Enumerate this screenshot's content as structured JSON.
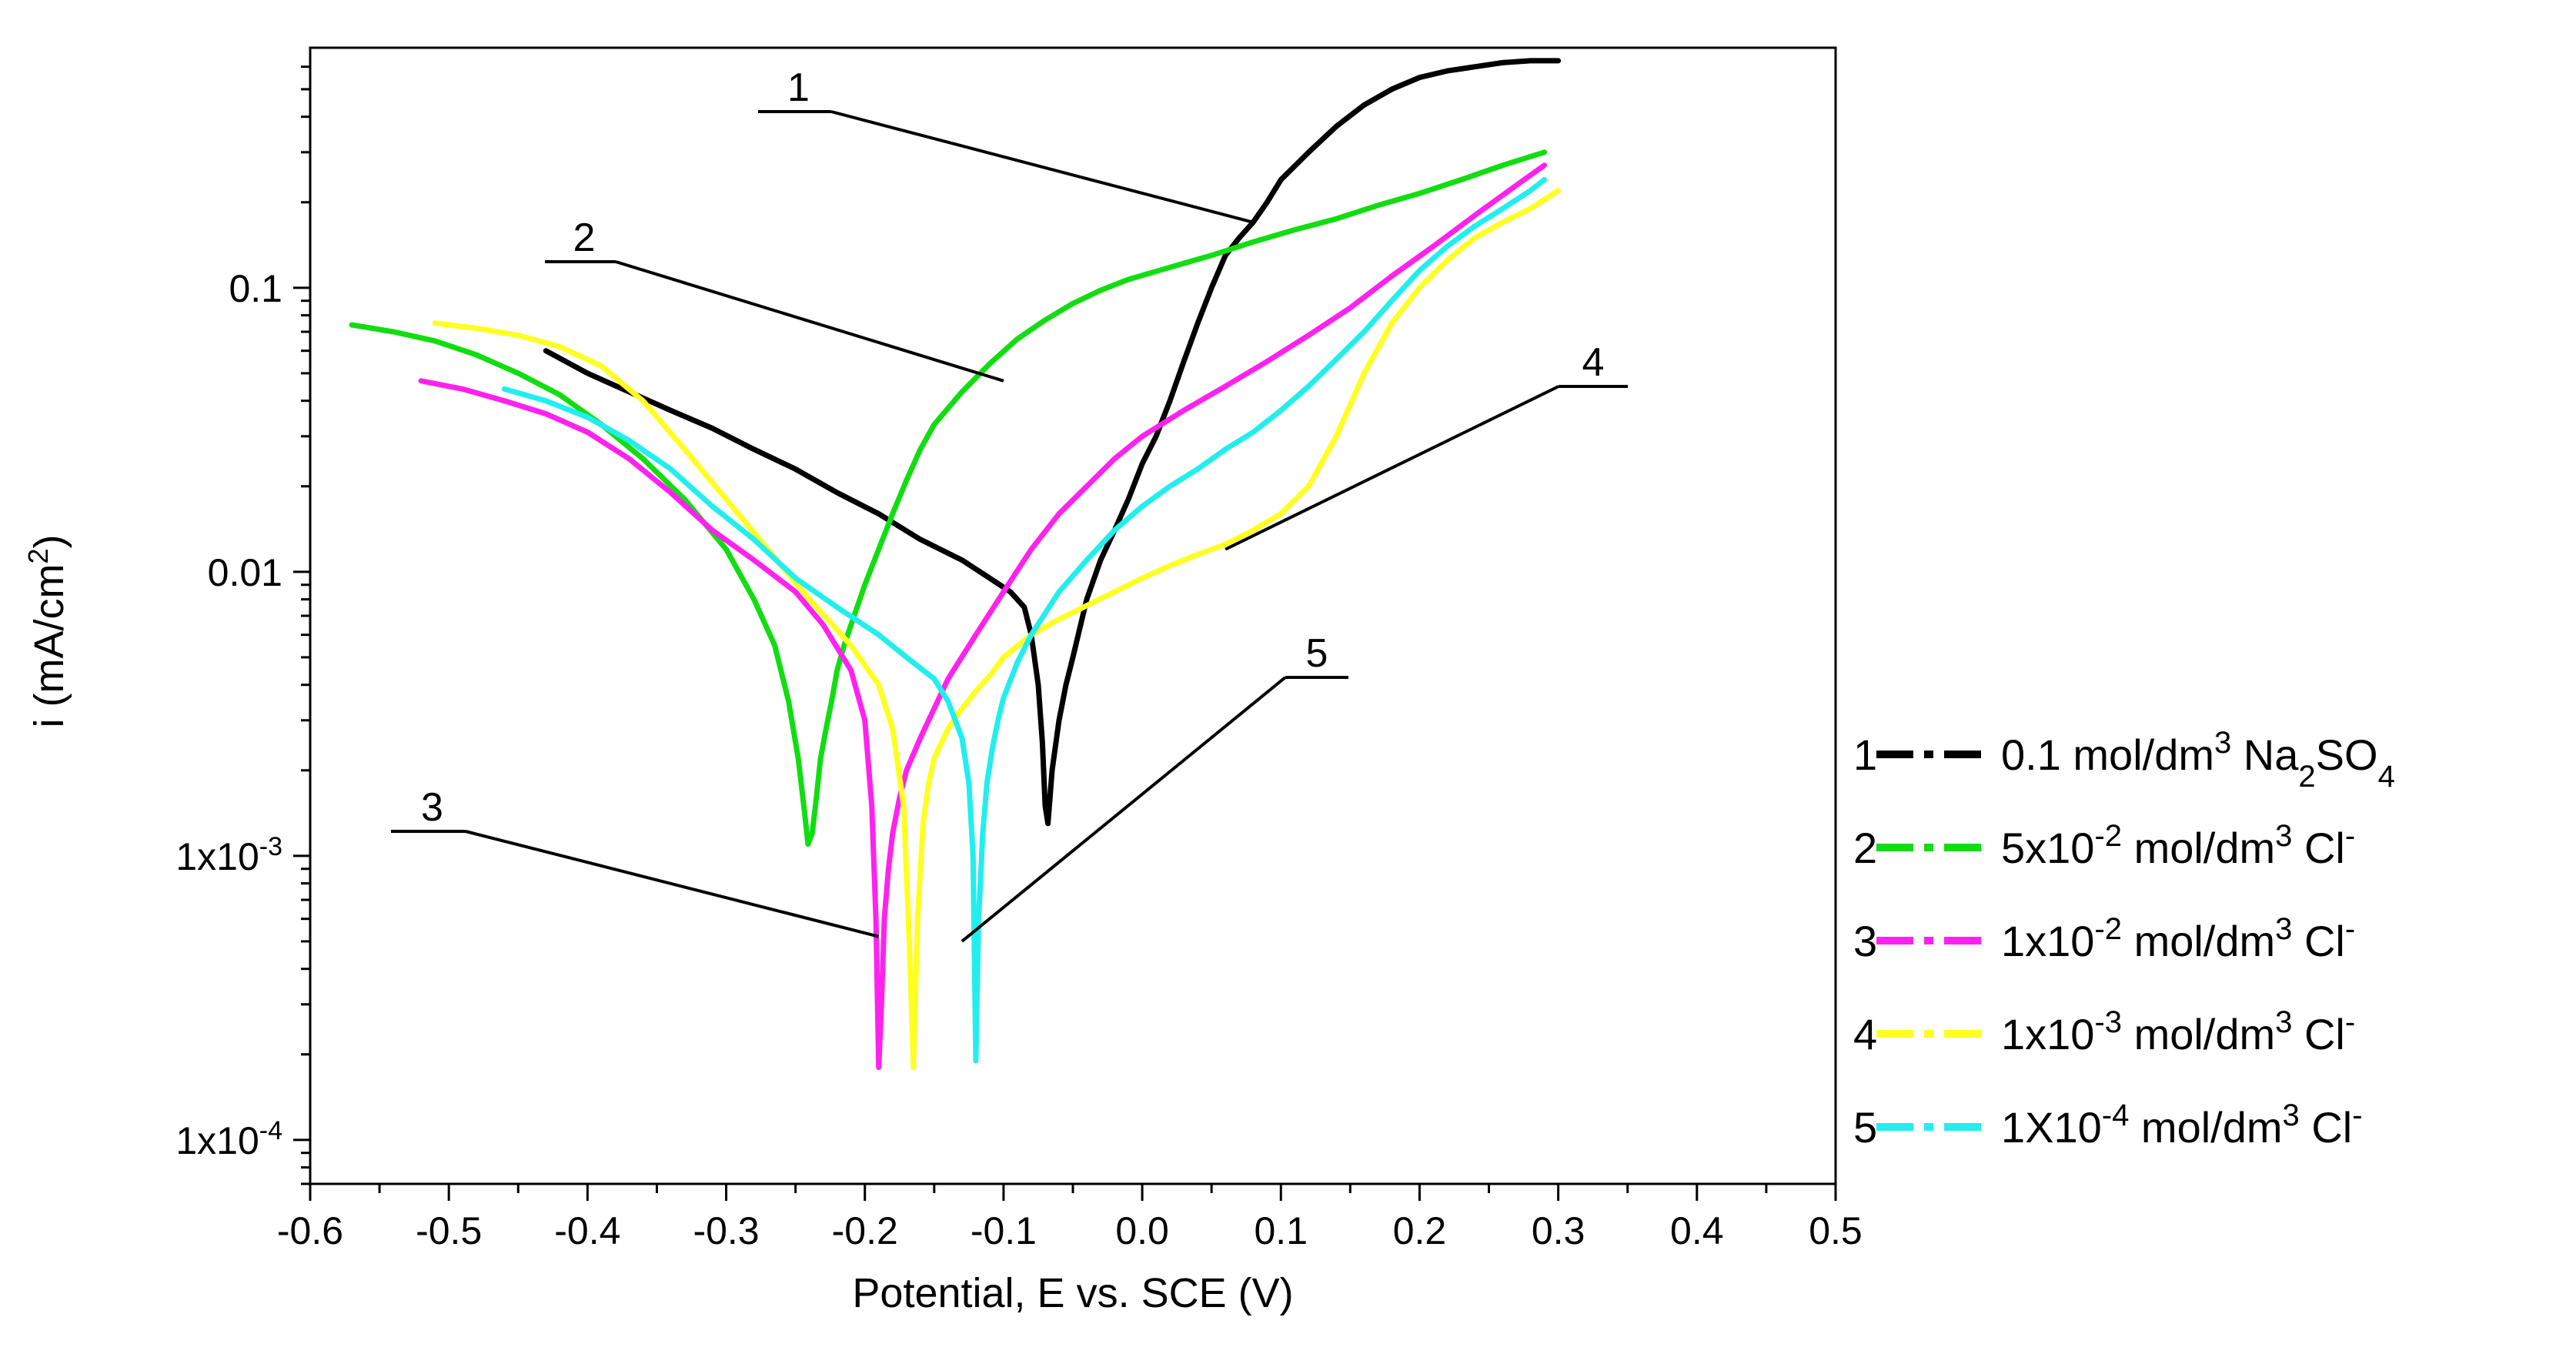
{
  "chart_data": {
    "type": "line",
    "title": "",
    "xlabel": "Potential, E vs. SCE (V)",
    "ylabel": "i (mA/cm2)",
    "ylabel_main": "i (mA/cm",
    "ylabel_sup": "2",
    "ylabel_end": ")",
    "xlim": [
      -0.6,
      0.5
    ],
    "ylim": [
      7e-05,
      0.7
    ],
    "yscale": "log",
    "grid": false,
    "legend_position": "right",
    "x_ticks": [
      -0.6,
      -0.5,
      -0.4,
      -0.3,
      -0.2,
      -0.1,
      0.0,
      0.1,
      0.2,
      0.3,
      0.4,
      0.5
    ],
    "x_tick_labels": [
      "-0.6",
      "-0.5",
      "-0.4",
      "-0.3",
      "-0.2",
      "-0.1",
      "0.0",
      "0.1",
      "0.2",
      "0.3",
      "0.4",
      "0.5"
    ],
    "y_ticks": [
      {
        "value": 0.1,
        "main": "0.1",
        "sup": ""
      },
      {
        "value": 0.01,
        "main": "0.01",
        "sup": ""
      },
      {
        "value": 0.001,
        "main": "1x10",
        "sup": "-3"
      },
      {
        "value": 0.0001,
        "main": "1x10",
        "sup": "-4"
      }
    ],
    "series": [
      {
        "id": "1",
        "color": "#000000",
        "legend": {
          "num": "1",
          "parts": [
            {
              "t": "0.1 mol/dm"
            },
            {
              "t": "3",
              "sup": true
            },
            {
              "t": " Na"
            },
            {
              "t": "2",
              "sub": true
            },
            {
              "t": "SO"
            },
            {
              "t": "4",
              "sub": true
            }
          ]
        },
        "x": [
          -0.43,
          -0.4,
          -0.37,
          -0.34,
          -0.31,
          -0.28,
          -0.25,
          -0.22,
          -0.19,
          -0.16,
          -0.13,
          -0.11,
          -0.095,
          -0.085,
          -0.08,
          -0.075,
          -0.072,
          -0.07,
          -0.068,
          -0.065,
          -0.06,
          -0.055,
          -0.05,
          -0.04,
          -0.03,
          -0.02,
          -0.01,
          0.0,
          0.01,
          0.02,
          0.03,
          0.04,
          0.05,
          0.06,
          0.07,
          0.08,
          0.09,
          0.1,
          0.12,
          0.14,
          0.16,
          0.18,
          0.2,
          0.22,
          0.24,
          0.26,
          0.28,
          0.3
        ],
        "y": [
          0.06,
          0.05,
          0.043,
          0.037,
          0.032,
          0.027,
          0.023,
          0.019,
          0.016,
          0.013,
          0.011,
          0.0095,
          0.0085,
          0.0075,
          0.006,
          0.004,
          0.0025,
          0.0015,
          0.0013,
          0.002,
          0.003,
          0.004,
          0.005,
          0.008,
          0.011,
          0.014,
          0.018,
          0.024,
          0.03,
          0.04,
          0.055,
          0.075,
          0.1,
          0.13,
          0.15,
          0.17,
          0.2,
          0.24,
          0.3,
          0.37,
          0.44,
          0.5,
          0.55,
          0.58,
          0.6,
          0.62,
          0.63,
          0.63
        ]
      },
      {
        "id": "2",
        "color": "#11dd11",
        "legend": {
          "num": "2",
          "parts": [
            {
              "t": "5x10"
            },
            {
              "t": "-2",
              "sup": true
            },
            {
              "t": " mol/dm"
            },
            {
              "t": "3",
              "sup": true
            },
            {
              "t": " Cl"
            },
            {
              "t": "-",
              "sup": true
            }
          ]
        },
        "x": [
          -0.57,
          -0.54,
          -0.51,
          -0.48,
          -0.45,
          -0.42,
          -0.39,
          -0.36,
          -0.33,
          -0.3,
          -0.28,
          -0.265,
          -0.255,
          -0.248,
          -0.244,
          -0.241,
          -0.238,
          -0.235,
          -0.232,
          -0.228,
          -0.224,
          -0.22,
          -0.215,
          -0.21,
          -0.2,
          -0.19,
          -0.18,
          -0.17,
          -0.16,
          -0.15,
          -0.13,
          -0.11,
          -0.09,
          -0.07,
          -0.05,
          -0.03,
          -0.01,
          0.02,
          0.05,
          0.08,
          0.11,
          0.14,
          0.17,
          0.2,
          0.23,
          0.26,
          0.29
        ],
        "y": [
          0.074,
          0.07,
          0.065,
          0.058,
          0.05,
          0.042,
          0.033,
          0.025,
          0.018,
          0.012,
          0.008,
          0.0055,
          0.0035,
          0.0022,
          0.0015,
          0.0011,
          0.0012,
          0.0016,
          0.0022,
          0.0028,
          0.0035,
          0.0045,
          0.0055,
          0.0065,
          0.009,
          0.012,
          0.016,
          0.021,
          0.027,
          0.033,
          0.043,
          0.054,
          0.066,
          0.077,
          0.088,
          0.098,
          0.107,
          0.118,
          0.13,
          0.145,
          0.16,
          0.175,
          0.195,
          0.215,
          0.24,
          0.27,
          0.3
        ]
      },
      {
        "id": "3",
        "color": "#ff22ee",
        "legend": {
          "num": "3",
          "parts": [
            {
              "t": "1x10"
            },
            {
              "t": "-2",
              "sup": true
            },
            {
              "t": " mol/dm"
            },
            {
              "t": "3",
              "sup": true
            },
            {
              "t": " Cl"
            },
            {
              "t": "-",
              "sup": true
            }
          ]
        },
        "x": [
          -0.52,
          -0.49,
          -0.46,
          -0.43,
          -0.4,
          -0.37,
          -0.34,
          -0.31,
          -0.28,
          -0.25,
          -0.23,
          -0.21,
          -0.2,
          -0.195,
          -0.192,
          -0.19,
          -0.188,
          -0.186,
          -0.183,
          -0.18,
          -0.175,
          -0.17,
          -0.16,
          -0.15,
          -0.14,
          -0.12,
          -0.1,
          -0.08,
          -0.06,
          -0.04,
          -0.02,
          0.0,
          0.03,
          0.06,
          0.09,
          0.12,
          0.15,
          0.18,
          0.21,
          0.24,
          0.27,
          0.29
        ],
        "y": [
          0.047,
          0.044,
          0.04,
          0.036,
          0.031,
          0.025,
          0.019,
          0.014,
          0.011,
          0.0085,
          0.0065,
          0.0045,
          0.003,
          0.0015,
          0.0006,
          0.00018,
          0.0003,
          0.0006,
          0.0009,
          0.0012,
          0.0016,
          0.002,
          0.0026,
          0.0033,
          0.0042,
          0.006,
          0.0085,
          0.012,
          0.016,
          0.02,
          0.025,
          0.03,
          0.037,
          0.045,
          0.055,
          0.068,
          0.085,
          0.11,
          0.14,
          0.18,
          0.23,
          0.27
        ]
      },
      {
        "id": "4",
        "color": "#ffff22",
        "legend": {
          "num": "4",
          "parts": [
            {
              "t": "1x10"
            },
            {
              "t": "-3",
              "sup": true
            },
            {
              "t": " mol/dm"
            },
            {
              "t": "3",
              "sup": true
            },
            {
              "t": " Cl"
            },
            {
              "t": "-",
              "sup": true
            }
          ]
        },
        "x": [
          -0.51,
          -0.48,
          -0.45,
          -0.42,
          -0.39,
          -0.36,
          -0.33,
          -0.3,
          -0.27,
          -0.24,
          -0.21,
          -0.19,
          -0.18,
          -0.172,
          -0.168,
          -0.165,
          -0.162,
          -0.158,
          -0.154,
          -0.15,
          -0.14,
          -0.13,
          -0.12,
          -0.11,
          -0.1,
          -0.08,
          -0.06,
          -0.04,
          -0.02,
          0.0,
          0.02,
          0.04,
          0.06,
          0.08,
          0.1,
          0.12,
          0.14,
          0.16,
          0.18,
          0.2,
          0.22,
          0.24,
          0.26,
          0.28,
          0.3
        ],
        "y": [
          0.075,
          0.072,
          0.068,
          0.062,
          0.053,
          0.04,
          0.027,
          0.018,
          0.012,
          0.008,
          0.0055,
          0.004,
          0.0028,
          0.0015,
          0.0005,
          0.00018,
          0.0006,
          0.0013,
          0.0018,
          0.0022,
          0.0028,
          0.0033,
          0.0038,
          0.0043,
          0.005,
          0.006,
          0.0068,
          0.0076,
          0.0085,
          0.0095,
          0.0105,
          0.0115,
          0.0125,
          0.014,
          0.016,
          0.02,
          0.03,
          0.05,
          0.075,
          0.1,
          0.125,
          0.15,
          0.17,
          0.19,
          0.22
        ]
      },
      {
        "id": "5",
        "color": "#22eeee",
        "legend": {
          "num": "5",
          "parts": [
            {
              "t": "1X10"
            },
            {
              "t": "-4",
              "sup": true
            },
            {
              "t": " mol/dm"
            },
            {
              "t": "3",
              "sup": true
            },
            {
              "t": " Cl"
            },
            {
              "t": "-",
              "sup": true
            }
          ]
        },
        "x": [
          -0.46,
          -0.43,
          -0.4,
          -0.37,
          -0.34,
          -0.31,
          -0.28,
          -0.25,
          -0.22,
          -0.19,
          -0.17,
          -0.15,
          -0.14,
          -0.13,
          -0.125,
          -0.122,
          -0.12,
          -0.118,
          -0.115,
          -0.112,
          -0.108,
          -0.104,
          -0.1,
          -0.09,
          -0.08,
          -0.06,
          -0.04,
          -0.02,
          0.0,
          0.02,
          0.04,
          0.06,
          0.08,
          0.1,
          0.12,
          0.14,
          0.16,
          0.18,
          0.2,
          0.22,
          0.24,
          0.26,
          0.28,
          0.29
        ],
        "y": [
          0.044,
          0.04,
          0.035,
          0.029,
          0.023,
          0.017,
          0.013,
          0.0095,
          0.0075,
          0.006,
          0.005,
          0.0042,
          0.0035,
          0.0026,
          0.0018,
          0.001,
          0.00019,
          0.0006,
          0.0012,
          0.0018,
          0.0024,
          0.003,
          0.0036,
          0.0048,
          0.006,
          0.0085,
          0.011,
          0.014,
          0.017,
          0.02,
          0.023,
          0.027,
          0.031,
          0.037,
          0.045,
          0.056,
          0.07,
          0.09,
          0.115,
          0.14,
          0.165,
          0.19,
          0.22,
          0.24
        ]
      }
    ],
    "annotations": [
      {
        "text": "1",
        "x": 0.08,
        "y": 0.17
      },
      {
        "text": "2",
        "x": -0.1,
        "y": 0.047
      },
      {
        "text": "3",
        "x": -0.19,
        "y": 0.00052
      },
      {
        "text": "4",
        "x": 0.06,
        "y": 0.012
      },
      {
        "text": "5",
        "x": -0.13,
        "y": 0.0005
      }
    ]
  }
}
